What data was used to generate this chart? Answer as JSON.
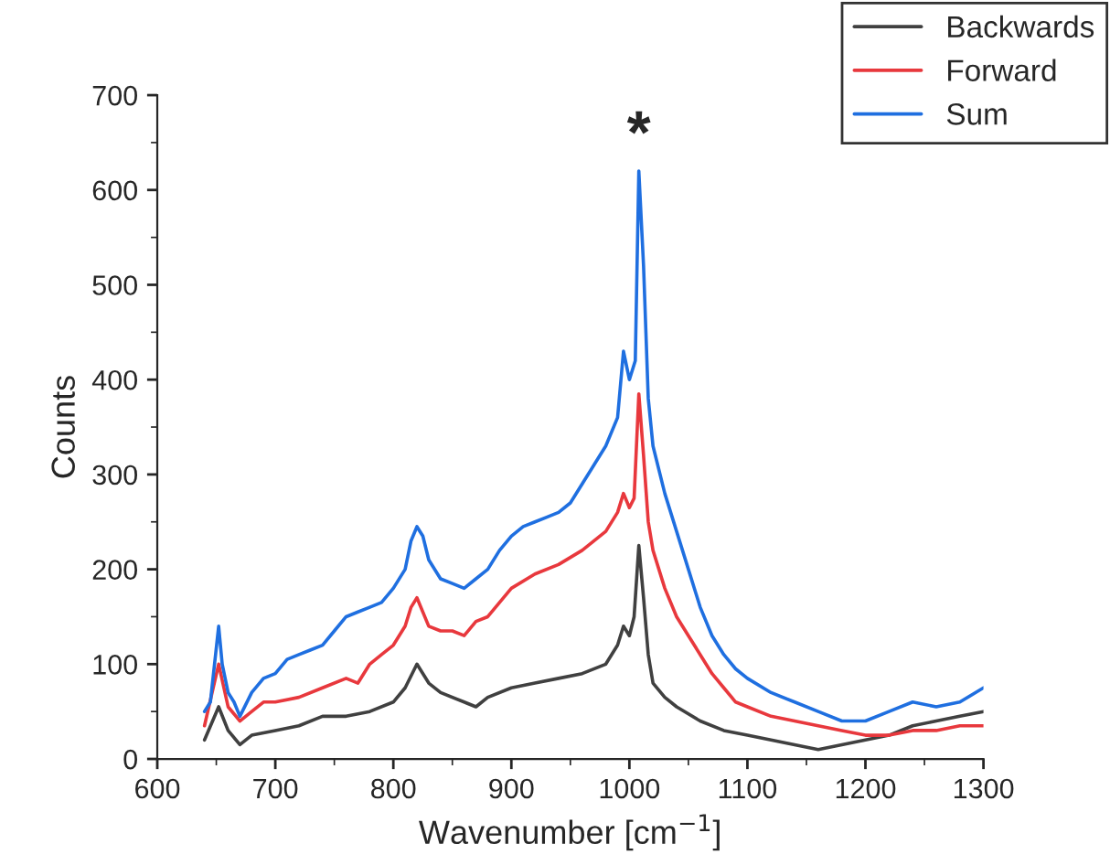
{
  "chart_data": {
    "type": "line",
    "xlabel": "Wavenumber [cm$^{−1}$]",
    "ylabel": "Counts",
    "xlim": [
      600,
      1300
    ],
    "xticks": [
      600,
      700,
      800,
      900,
      1000,
      1100,
      1200,
      1300
    ],
    "ylim": [
      0,
      700
    ],
    "yticks": [
      0,
      100,
      200,
      300,
      400,
      500,
      600,
      700
    ],
    "grid": false,
    "legend": "top right",
    "marker": "none",
    "line_style": "solid",
    "annotations": [
      {
        "text": "*",
        "x": 1008,
        "y": 620
      }
    ],
    "series": [
      {
        "name": "Backwards",
        "color": "#404040",
        "x": [
          640,
          652,
          660,
          670,
          680,
          700,
          720,
          740,
          760,
          780,
          800,
          810,
          820,
          830,
          840,
          860,
          870,
          880,
          900,
          920,
          940,
          960,
          980,
          990,
          995,
          1000,
          1004,
          1008,
          1012,
          1016,
          1020,
          1030,
          1040,
          1060,
          1080,
          1100,
          1120,
          1140,
          1160,
          1180,
          1200,
          1220,
          1240,
          1260,
          1280,
          1300
        ],
        "values": [
          20,
          55,
          30,
          15,
          25,
          30,
          35,
          45,
          45,
          50,
          60,
          75,
          100,
          80,
          70,
          60,
          55,
          65,
          75,
          80,
          85,
          90,
          100,
          120,
          140,
          130,
          150,
          225,
          170,
          110,
          80,
          65,
          55,
          40,
          30,
          25,
          20,
          15,
          10,
          15,
          20,
          25,
          35,
          40,
          45,
          50
        ]
      },
      {
        "name": "Forward",
        "color": "#e8383d",
        "x": [
          640,
          652,
          660,
          670,
          680,
          690,
          700,
          720,
          740,
          760,
          770,
          780,
          790,
          800,
          810,
          815,
          820,
          830,
          840,
          850,
          860,
          870,
          880,
          890,
          900,
          920,
          940,
          960,
          980,
          990,
          995,
          1000,
          1004,
          1008,
          1012,
          1016,
          1020,
          1030,
          1040,
          1050,
          1060,
          1070,
          1080,
          1090,
          1100,
          1120,
          1140,
          1160,
          1180,
          1200,
          1220,
          1240,
          1260,
          1280,
          1300
        ],
        "values": [
          35,
          100,
          55,
          40,
          50,
          60,
          60,
          65,
          75,
          85,
          80,
          100,
          110,
          120,
          140,
          160,
          170,
          140,
          135,
          135,
          130,
          145,
          150,
          165,
          180,
          195,
          205,
          220,
          240,
          260,
          280,
          265,
          275,
          385,
          320,
          250,
          220,
          180,
          150,
          130,
          110,
          90,
          75,
          60,
          55,
          45,
          40,
          35,
          30,
          25,
          25,
          30,
          30,
          35,
          35
        ]
      },
      {
        "name": "Sum",
        "color": "#1f6fe0",
        "x": [
          640,
          645,
          652,
          655,
          660,
          665,
          670,
          680,
          690,
          700,
          710,
          720,
          730,
          740,
          750,
          760,
          770,
          780,
          790,
          800,
          810,
          815,
          820,
          825,
          830,
          840,
          850,
          860,
          870,
          880,
          890,
          900,
          910,
          920,
          930,
          940,
          950,
          960,
          970,
          980,
          990,
          995,
          1000,
          1005,
          1008,
          1012,
          1016,
          1020,
          1030,
          1040,
          1050,
          1060,
          1070,
          1080,
          1090,
          1100,
          1120,
          1140,
          1160,
          1180,
          1200,
          1220,
          1240,
          1260,
          1280,
          1300
        ],
        "values": [
          50,
          60,
          140,
          100,
          70,
          60,
          45,
          70,
          85,
          90,
          105,
          110,
          115,
          120,
          135,
          150,
          155,
          160,
          165,
          180,
          200,
          230,
          245,
          235,
          210,
          190,
          185,
          180,
          190,
          200,
          220,
          235,
          245,
          250,
          255,
          260,
          270,
          290,
          310,
          330,
          360,
          430,
          400,
          420,
          620,
          520,
          380,
          330,
          280,
          240,
          200,
          160,
          130,
          110,
          95,
          85,
          70,
          60,
          50,
          40,
          40,
          50,
          60,
          55,
          60,
          75
        ]
      }
    ]
  }
}
